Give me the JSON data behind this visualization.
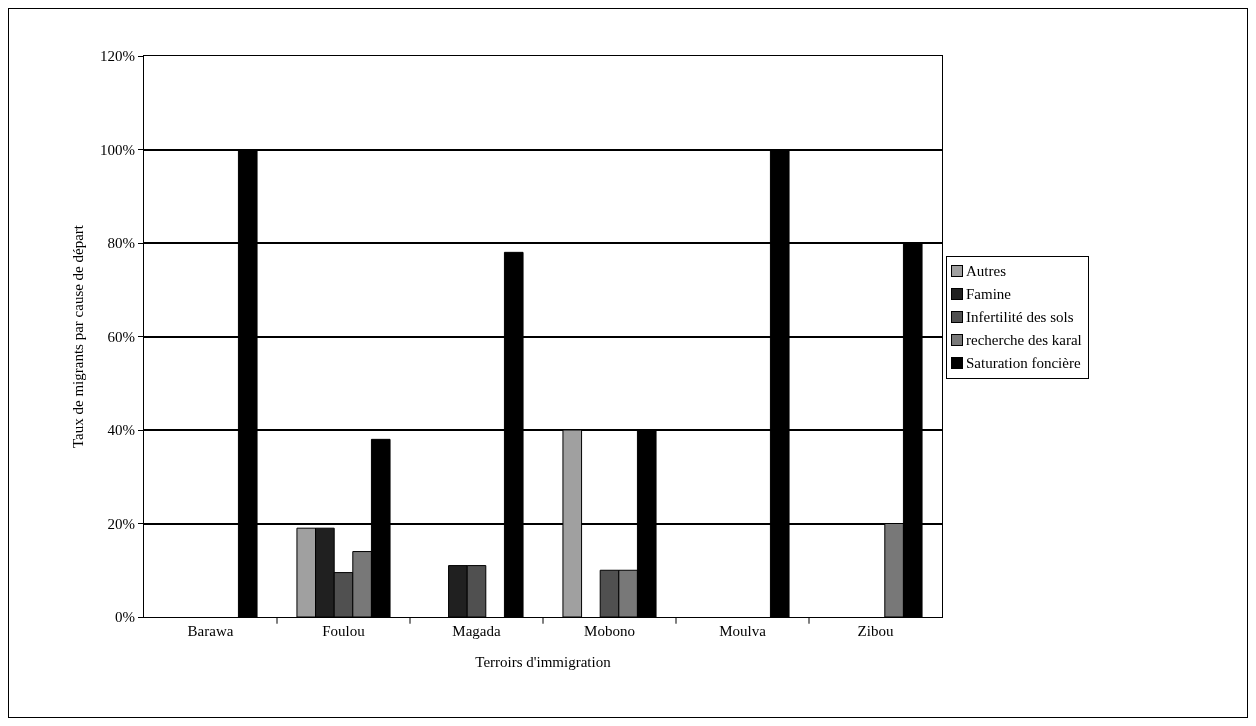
{
  "chart_data": {
    "type": "bar",
    "xlabel": "Terroirs d'immigration",
    "ylabel": "Taux de migrants par cause de départ",
    "categories": [
      "Barawa",
      "Foulou",
      "Magada",
      "Mobono",
      "Moulva",
      "Zibou"
    ],
    "series": [
      {
        "name": "Autres",
        "color": "#a0a0a0",
        "values": [
          null,
          19,
          null,
          40,
          null,
          null
        ]
      },
      {
        "name": "Famine",
        "color": "#202020",
        "values": [
          null,
          19,
          11,
          null,
          null,
          null
        ]
      },
      {
        "name": "Infertilité des sols",
        "color": "#505050",
        "values": [
          null,
          9.5,
          11,
          10,
          null,
          null
        ]
      },
      {
        "name": "recherche des karal",
        "color": "#787878",
        "values": [
          null,
          14,
          null,
          10,
          null,
          20
        ]
      },
      {
        "name": "Saturation foncière",
        "color": "#000000",
        "values": [
          100,
          38,
          78,
          40,
          100,
          80
        ]
      }
    ],
    "ylim": [
      0,
      120
    ],
    "yticks": [
      {
        "value": 0,
        "label": "0%"
      },
      {
        "value": 20,
        "label": "20%"
      },
      {
        "value": 40,
        "label": "40%"
      },
      {
        "value": 60,
        "label": "60%"
      },
      {
        "value": 80,
        "label": "80%"
      },
      {
        "value": 100,
        "label": "100%"
      },
      {
        "value": 120,
        "label": "120%"
      }
    ],
    "grid": "y",
    "legend": "right"
  }
}
